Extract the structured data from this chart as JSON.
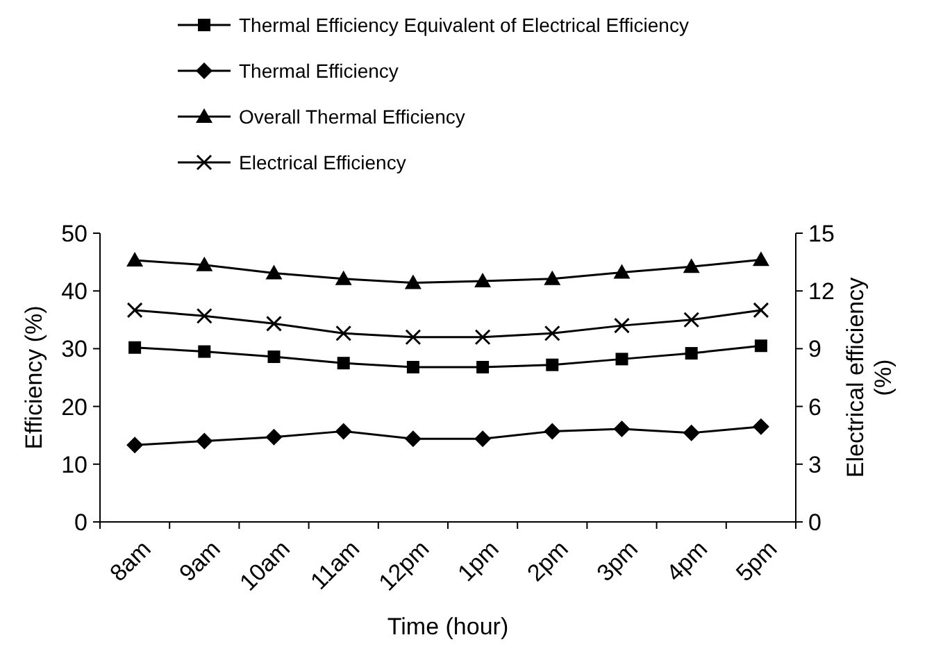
{
  "chart_data": {
    "type": "line",
    "xlabel": "Time (hour)",
    "ylabel": "Efficiency (%)",
    "y2label": "Electrical efficiency (%)",
    "categories": [
      "8am",
      "9am",
      "10am",
      "11am",
      "12pm",
      "1pm",
      "2pm",
      "3pm",
      "4pm",
      "5pm"
    ],
    "ylim": [
      0,
      50
    ],
    "yticks": [
      0,
      10,
      20,
      30,
      40,
      50
    ],
    "y2lim": [
      0,
      15
    ],
    "y2ticks": [
      0,
      3,
      6,
      9,
      12,
      15
    ],
    "legend": "top",
    "grid": false,
    "line_style": "solid",
    "series": [
      {
        "name": "Thermal Efficiency Equivalent of Electrical Efficiency",
        "color": "#000000",
        "marker": "square",
        "values": [
          30.2,
          29.5,
          28.6,
          27.5,
          26.8,
          26.8,
          27.2,
          28.2,
          29.2,
          30.5
        ]
      },
      {
        "name": "Thermal Efficiency",
        "color": "#000000",
        "marker": "diamond",
        "values": [
          13.3,
          14.0,
          14.7,
          15.7,
          14.4,
          14.4,
          15.7,
          16.1,
          15.4,
          16.5
        ]
      },
      {
        "name": "Overall Thermal Efficiency",
        "color": "#000000",
        "marker": "triangle",
        "values": [
          45.3,
          44.5,
          43.1,
          42.1,
          41.4,
          41.7,
          42.1,
          43.2,
          44.2,
          45.4
        ]
      },
      {
        "name": "Electrical Efficiency",
        "color": "#000000",
        "marker": "cross",
        "axis": "y2",
        "values": [
          11.0,
          10.7,
          10.3,
          9.8,
          9.6,
          9.6,
          9.8,
          10.2,
          10.5,
          11.0
        ]
      }
    ]
  }
}
